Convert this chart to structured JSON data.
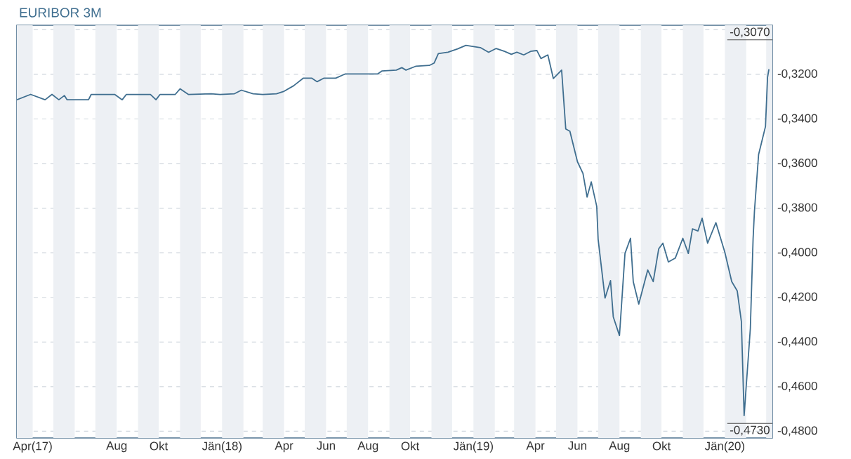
{
  "chart_data": {
    "type": "line",
    "title": "EURIBOR 3M",
    "x": [
      "2017-03-09",
      "2017-03-29",
      "2017-04-19",
      "2017-04-29",
      "2017-05-09",
      "2017-05-17",
      "2017-05-21",
      "2017-06-21",
      "2017-06-25",
      "2017-07-29",
      "2017-08-09",
      "2017-08-15",
      "2017-09-19",
      "2017-09-27",
      "2017-10-03",
      "2017-10-25",
      "2017-11-01",
      "2017-11-13",
      "2017-12-16",
      "2017-12-29",
      "2018-01-19",
      "2018-01-29",
      "2018-02-15",
      "2018-03-01",
      "2018-03-21",
      "2018-04-01",
      "2018-04-15",
      "2018-04-29",
      "2018-05-11",
      "2018-05-19",
      "2018-05-29",
      "2018-06-15",
      "2018-06-29",
      "2018-08-15",
      "2018-08-21",
      "2018-09-11",
      "2018-09-19",
      "2018-09-25",
      "2018-10-09",
      "2018-10-29",
      "2018-11-05",
      "2018-11-11",
      "2018-11-25",
      "2018-12-09",
      "2018-12-21",
      "2019-01-11",
      "2019-01-23",
      "2019-02-03",
      "2019-02-15",
      "2019-02-25",
      "2019-03-05",
      "2019-03-15",
      "2019-03-25",
      "2019-04-03",
      "2019-04-09",
      "2019-04-19",
      "2019-04-27",
      "2019-05-09",
      "2019-05-15",
      "2019-05-21",
      "2019-06-01",
      "2019-06-09",
      "2019-06-15",
      "2019-06-21",
      "2019-06-29",
      "2019-07-01",
      "2019-07-11",
      "2019-07-19",
      "2019-07-23",
      "2019-08-01",
      "2019-08-09",
      "2019-08-17",
      "2019-08-21",
      "2019-08-29",
      "2019-09-11",
      "2019-09-19",
      "2019-09-27",
      "2019-10-03",
      "2019-10-11",
      "2019-10-21",
      "2019-11-01",
      "2019-11-09",
      "2019-11-15",
      "2019-11-23",
      "2019-11-29",
      "2019-12-07",
      "2019-12-19",
      "2020-01-01",
      "2020-01-11",
      "2020-01-19",
      "2020-01-25",
      "2020-01-29",
      "2020-02-07",
      "2020-02-11",
      "2020-02-13",
      "2020-02-19",
      "2020-02-29",
      "2020-03-03",
      "2020-03-05"
    ],
    "series": [
      {
        "color": "#3f6e8f",
        "values": [
          -0.3314,
          -0.329,
          -0.3314,
          -0.329,
          -0.3314,
          -0.3295,
          -0.3314,
          -0.3314,
          -0.329,
          -0.329,
          -0.3314,
          -0.329,
          -0.329,
          -0.3314,
          -0.329,
          -0.329,
          -0.3265,
          -0.329,
          -0.3287,
          -0.329,
          -0.3287,
          -0.3271,
          -0.3287,
          -0.329,
          -0.3287,
          -0.3276,
          -0.3251,
          -0.3217,
          -0.3217,
          -0.3233,
          -0.3217,
          -0.3217,
          -0.3198,
          -0.3198,
          -0.3185,
          -0.3181,
          -0.317,
          -0.3181,
          -0.3164,
          -0.316,
          -0.3149,
          -0.3107,
          -0.3101,
          -0.3086,
          -0.307,
          -0.308,
          -0.3101,
          -0.3084,
          -0.3097,
          -0.311,
          -0.3101,
          -0.3113,
          -0.3097,
          -0.3093,
          -0.3129,
          -0.3113,
          -0.3219,
          -0.3181,
          -0.3445,
          -0.3455,
          -0.3592,
          -0.3644,
          -0.375,
          -0.3682,
          -0.3792,
          -0.3939,
          -0.4203,
          -0.4125,
          -0.4287,
          -0.4371,
          -0.4003,
          -0.3935,
          -0.4129,
          -0.423,
          -0.4077,
          -0.4129,
          -0.3982,
          -0.3957,
          -0.4041,
          -0.4024,
          -0.3935,
          -0.4003,
          -0.3893,
          -0.3902,
          -0.3845,
          -0.3957,
          -0.3865,
          -0.3998,
          -0.4129,
          -0.4171,
          -0.4308,
          -0.473,
          -0.434,
          -0.3939,
          -0.3813,
          -0.356,
          -0.3434,
          -0.3213,
          -0.3177
        ]
      }
    ],
    "xlim": [
      "2017-03-09",
      "2020-03-10"
    ],
    "xticks": [
      {
        "value": "2017-04-01",
        "label": "Apr(17)"
      },
      {
        "value": "2017-08-01",
        "label": "Aug"
      },
      {
        "value": "2017-10-01",
        "label": "Okt"
      },
      {
        "value": "2018-01-01",
        "label": "Jän(18)"
      },
      {
        "value": "2018-04-01",
        "label": "Apr"
      },
      {
        "value": "2018-06-01",
        "label": "Jun"
      },
      {
        "value": "2018-08-01",
        "label": "Aug"
      },
      {
        "value": "2018-10-01",
        "label": "Okt"
      },
      {
        "value": "2019-01-01",
        "label": "Jän(19)"
      },
      {
        "value": "2019-04-01",
        "label": "Apr"
      },
      {
        "value": "2019-06-01",
        "label": "Jun"
      },
      {
        "value": "2019-08-01",
        "label": "Aug"
      },
      {
        "value": "2019-10-01",
        "label": "Okt"
      },
      {
        "value": "2020-01-01",
        "label": "Jän(20)"
      }
    ],
    "ylim": [
      -0.483,
      -0.298
    ],
    "yticks": [
      {
        "value": -0.3,
        "label": null
      },
      {
        "value": -0.32,
        "label": "-0,3200"
      },
      {
        "value": -0.34,
        "label": "-0,3400"
      },
      {
        "value": -0.36,
        "label": "-0,3600"
      },
      {
        "value": -0.38,
        "label": "-0,3800"
      },
      {
        "value": -0.4,
        "label": "-0,4000"
      },
      {
        "value": -0.42,
        "label": "-0,4200"
      },
      {
        "value": -0.44,
        "label": "-0,4400"
      },
      {
        "value": -0.46,
        "label": "-0,4600"
      },
      {
        "value": -0.48,
        "label": "-0,4800"
      }
    ],
    "grid": "y",
    "line_style": "solid",
    "annotations": [
      "-0,3070",
      "-0,4730"
    ],
    "bands": [
      {
        "axis": "x",
        "from": "2017-03-09",
        "to": "2017-04-01",
        "color": "#edf0f4"
      },
      {
        "axis": "x",
        "from": "2017-05-01",
        "to": "2017-06-01",
        "color": "#edf0f4"
      },
      {
        "axis": "x",
        "from": "2017-07-01",
        "to": "2017-08-01",
        "color": "#edf0f4"
      },
      {
        "axis": "x",
        "from": "2017-09-01",
        "to": "2017-10-01",
        "color": "#edf0f4"
      },
      {
        "axis": "x",
        "from": "2017-11-01",
        "to": "2017-12-01",
        "color": "#edf0f4"
      },
      {
        "axis": "x",
        "from": "2018-01-01",
        "to": "2018-02-01",
        "color": "#edf0f4"
      },
      {
        "axis": "x",
        "from": "2018-03-01",
        "to": "2018-04-01",
        "color": "#edf0f4"
      },
      {
        "axis": "x",
        "from": "2018-05-01",
        "to": "2018-06-01",
        "color": "#edf0f4"
      },
      {
        "axis": "x",
        "from": "2018-07-01",
        "to": "2018-08-01",
        "color": "#edf0f4"
      },
      {
        "axis": "x",
        "from": "2018-09-01",
        "to": "2018-10-01",
        "color": "#edf0f4"
      },
      {
        "axis": "x",
        "from": "2018-11-01",
        "to": "2018-12-01",
        "color": "#edf0f4"
      },
      {
        "axis": "x",
        "from": "2019-01-01",
        "to": "2019-02-01",
        "color": "#edf0f4"
      },
      {
        "axis": "x",
        "from": "2019-03-01",
        "to": "2019-04-01",
        "color": "#edf0f4"
      },
      {
        "axis": "x",
        "from": "2019-05-01",
        "to": "2019-06-01",
        "color": "#edf0f4"
      },
      {
        "axis": "x",
        "from": "2019-07-01",
        "to": "2019-08-01",
        "color": "#edf0f4"
      },
      {
        "axis": "x",
        "from": "2019-09-01",
        "to": "2019-10-01",
        "color": "#edf0f4"
      },
      {
        "axis": "x",
        "from": "2019-11-01",
        "to": "2019-12-01",
        "color": "#edf0f4"
      },
      {
        "axis": "x",
        "from": "2020-01-01",
        "to": "2020-02-01",
        "color": "#edf0f4"
      },
      {
        "axis": "x",
        "from": "2020-03-01",
        "to": "2020-03-10",
        "color": "#edf0f4"
      }
    ]
  }
}
